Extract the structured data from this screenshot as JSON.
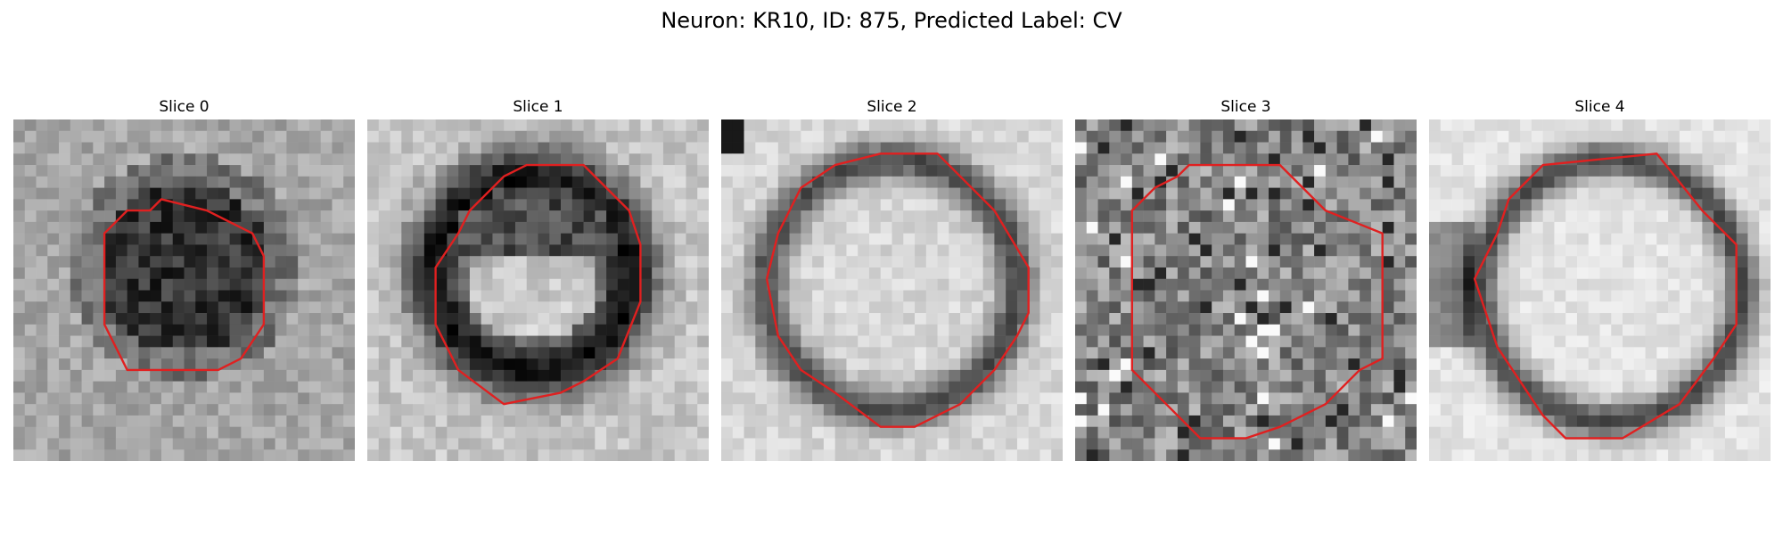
{
  "figure": {
    "title": "Neuron: KR10, ID: 875, Predicted Label: CV",
    "outline_color": "#e02020",
    "colormap": "grayscale (dark = high intensity)"
  },
  "slices": [
    {
      "title": "Slice 0",
      "appearance": "dark filled disk",
      "contour": "small roughly octagonal outline"
    },
    {
      "title": "Slice 1",
      "appearance": "dark ring, lighter lower interior",
      "contour": "tilted octagonal outline"
    },
    {
      "title": "Slice 2",
      "appearance": "bright interior with dark rim",
      "contour": "large octagonal outline"
    },
    {
      "title": "Slice 3",
      "appearance": "noisy mid-gray texture",
      "contour": "large octagonal outline"
    },
    {
      "title": "Slice 4",
      "appearance": "bright interior with dark rim",
      "contour": "large octagonal outline"
    }
  ]
}
